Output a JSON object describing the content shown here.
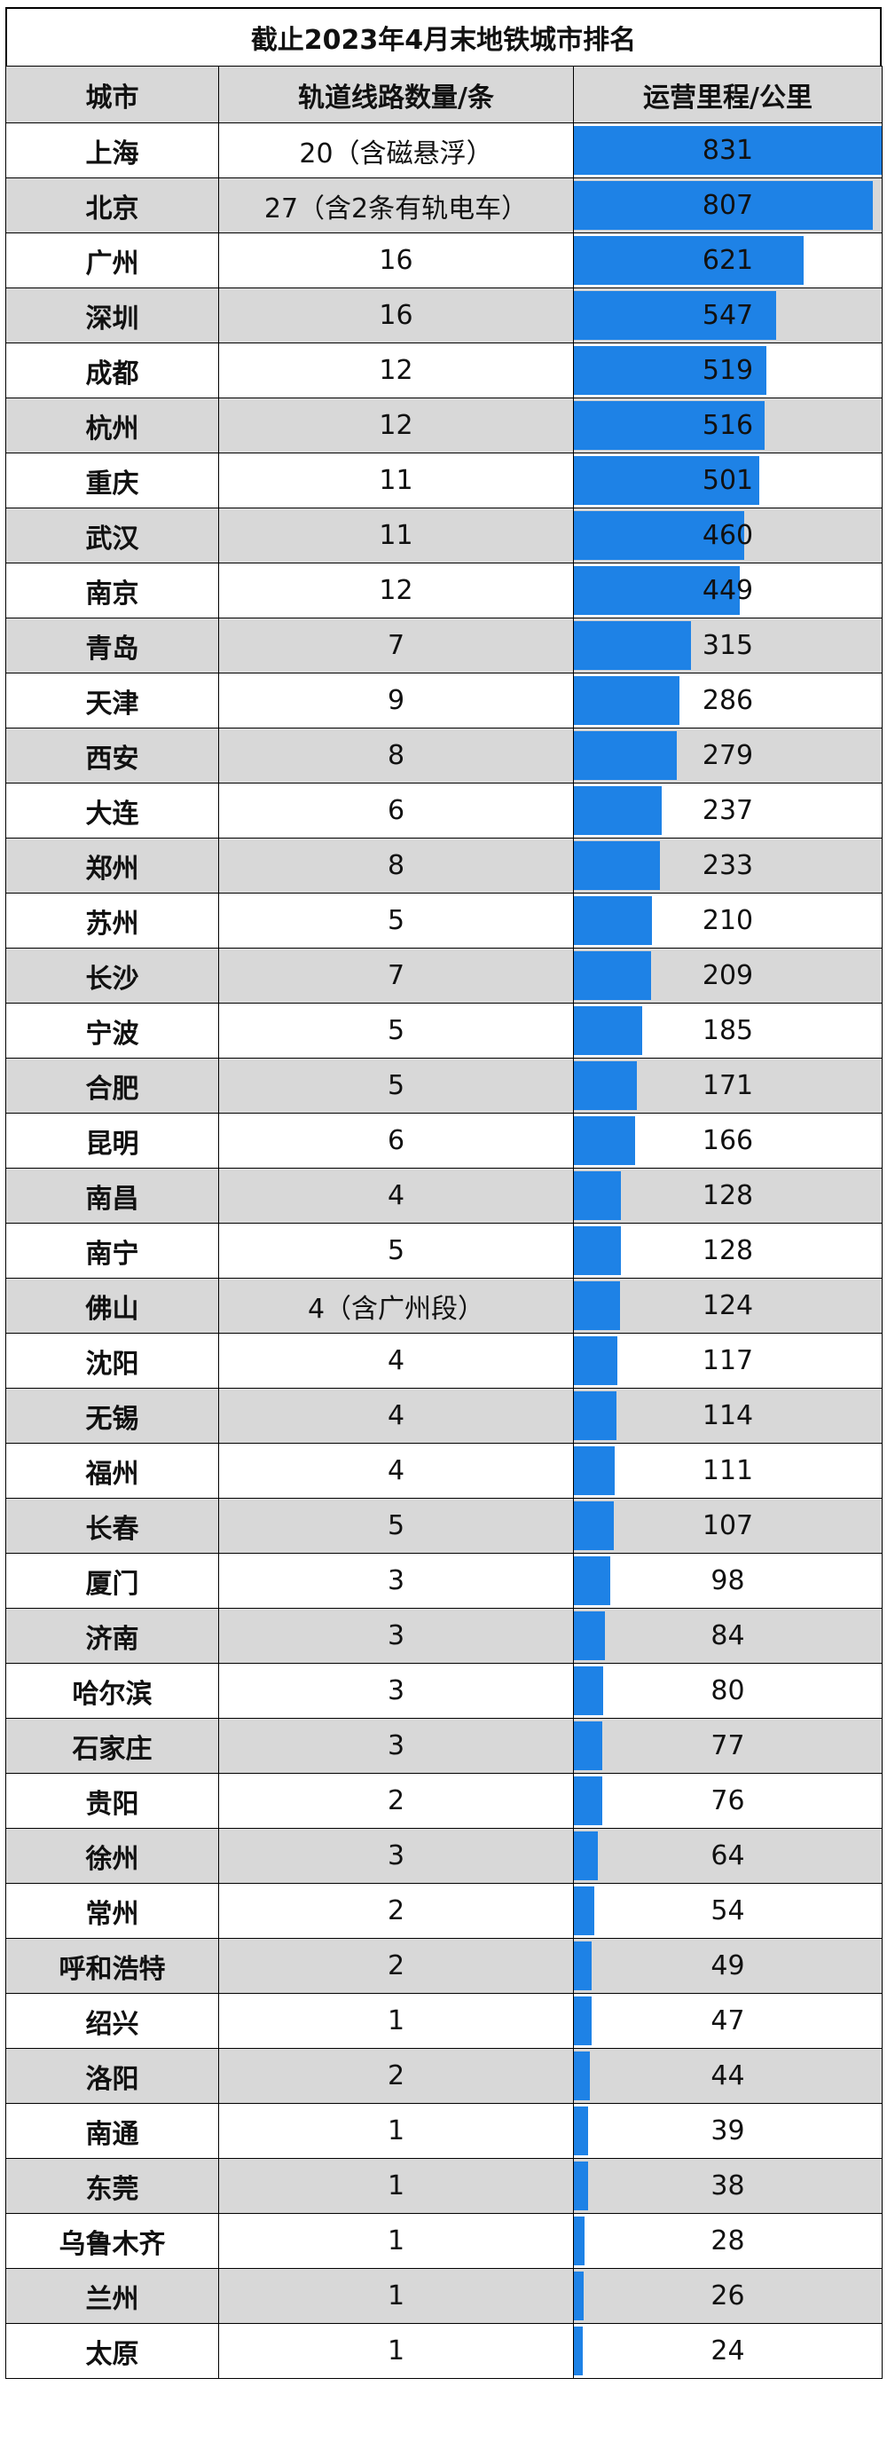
{
  "title": "截止2023年4月末地铁城市排名",
  "headers": [
    "城市",
    "轨道线路数量/条",
    "运营里程/公里"
  ],
  "bar_color": "#1e82e6",
  "max_distance": 831,
  "rows": [
    {
      "city": "上海",
      "lines": "20（含磁悬浮）",
      "distance": 831
    },
    {
      "city": "北京",
      "lines": "27（含2条有轨电车）",
      "distance": 807
    },
    {
      "city": "广州",
      "lines": "16",
      "distance": 621
    },
    {
      "city": "深圳",
      "lines": "16",
      "distance": 547
    },
    {
      "city": "成都",
      "lines": "12",
      "distance": 519
    },
    {
      "city": "杭州",
      "lines": "12",
      "distance": 516
    },
    {
      "city": "重庆",
      "lines": "11",
      "distance": 501
    },
    {
      "city": "武汉",
      "lines": "11",
      "distance": 460
    },
    {
      "city": "南京",
      "lines": "12",
      "distance": 449
    },
    {
      "city": "青岛",
      "lines": "7",
      "distance": 315
    },
    {
      "city": "天津",
      "lines": "9",
      "distance": 286
    },
    {
      "city": "西安",
      "lines": "8",
      "distance": 279
    },
    {
      "city": "大连",
      "lines": "6",
      "distance": 237
    },
    {
      "city": "郑州",
      "lines": "8",
      "distance": 233
    },
    {
      "city": "苏州",
      "lines": "5",
      "distance": 210
    },
    {
      "city": "长沙",
      "lines": "7",
      "distance": 209
    },
    {
      "city": "宁波",
      "lines": "5",
      "distance": 185
    },
    {
      "city": "合肥",
      "lines": "5",
      "distance": 171
    },
    {
      "city": "昆明",
      "lines": "6",
      "distance": 166
    },
    {
      "city": "南昌",
      "lines": "4",
      "distance": 128
    },
    {
      "city": "南宁",
      "lines": "5",
      "distance": 128
    },
    {
      "city": "佛山",
      "lines": "4（含广州段）",
      "distance": 124
    },
    {
      "city": "沈阳",
      "lines": "4",
      "distance": 117
    },
    {
      "city": "无锡",
      "lines": "4",
      "distance": 114
    },
    {
      "city": "福州",
      "lines": "4",
      "distance": 111
    },
    {
      "city": "长春",
      "lines": "5",
      "distance": 107
    },
    {
      "city": "厦门",
      "lines": "3",
      "distance": 98
    },
    {
      "city": "济南",
      "lines": "3",
      "distance": 84
    },
    {
      "city": "哈尔滨",
      "lines": "3",
      "distance": 80
    },
    {
      "city": "石家庄",
      "lines": "3",
      "distance": 77
    },
    {
      "city": "贵阳",
      "lines": "2",
      "distance": 76
    },
    {
      "city": "徐州",
      "lines": "3",
      "distance": 64
    },
    {
      "city": "常州",
      "lines": "2",
      "distance": 54
    },
    {
      "city": "呼和浩特",
      "lines": "2",
      "distance": 49
    },
    {
      "city": "绍兴",
      "lines": "1",
      "distance": 47
    },
    {
      "city": "洛阳",
      "lines": "2",
      "distance": 44
    },
    {
      "city": "南通",
      "lines": "1",
      "distance": 39
    },
    {
      "city": "东莞",
      "lines": "1",
      "distance": 38
    },
    {
      "city": "乌鲁木齐",
      "lines": "1",
      "distance": 28
    },
    {
      "city": "兰州",
      "lines": "1",
      "distance": 26
    },
    {
      "city": "太原",
      "lines": "1",
      "distance": 24
    }
  ]
}
